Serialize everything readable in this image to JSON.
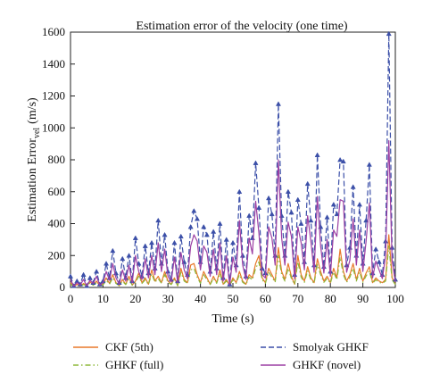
{
  "chart_data": {
    "type": "line",
    "title": "Estimation error of the velocity (one time)",
    "xlabel": "Time (s)",
    "ylabel": "Estimation Error",
    "ylabel_sub": "vel",
    "ylabel_unit": "(m/s)",
    "xlim": [
      0,
      100
    ],
    "ylim": [
      0,
      1600
    ],
    "xticks": [
      0,
      10,
      20,
      30,
      40,
      50,
      60,
      70,
      80,
      90,
      100
    ],
    "yticks": [
      0,
      200,
      400,
      600,
      800,
      1000,
      1200,
      1400,
      1600
    ],
    "grid": false,
    "legend_position": "bottom",
    "x": [
      0,
      1,
      2,
      3,
      4,
      5,
      6,
      7,
      8,
      9,
      10,
      11,
      12,
      13,
      14,
      15,
      16,
      17,
      18,
      19,
      20,
      21,
      22,
      23,
      24,
      25,
      26,
      27,
      28,
      29,
      30,
      31,
      32,
      33,
      34,
      35,
      36,
      37,
      38,
      39,
      40,
      41,
      42,
      43,
      44,
      45,
      46,
      47,
      48,
      49,
      50,
      51,
      52,
      53,
      54,
      55,
      56,
      57,
      58,
      59,
      60,
      61,
      62,
      63,
      64,
      65,
      66,
      67,
      68,
      69,
      70,
      71,
      72,
      73,
      74,
      75,
      76,
      77,
      78,
      79,
      80,
      81,
      82,
      83,
      84,
      85,
      86,
      87,
      88,
      89,
      90,
      91,
      92,
      93,
      94,
      95,
      96,
      97,
      98,
      99,
      100
    ],
    "series": [
      {
        "name": "CKF (5th)",
        "color": "#e8792a",
        "dash": "solid",
        "marker": "none",
        "values": [
          30,
          5,
          20,
          8,
          25,
          10,
          35,
          15,
          40,
          10,
          20,
          60,
          25,
          80,
          30,
          10,
          50,
          20,
          70,
          15,
          40,
          90,
          30,
          60,
          20,
          110,
          40,
          70,
          30,
          100,
          40,
          20,
          60,
          10,
          120,
          50,
          30,
          140,
          150,
          80,
          30,
          100,
          60,
          20,
          70,
          30,
          110,
          20,
          50,
          10,
          60,
          30,
          100,
          40,
          20,
          80,
          60,
          150,
          200,
          60,
          30,
          120,
          80,
          40,
          250,
          100,
          50,
          150,
          70,
          20,
          200,
          80,
          40,
          130,
          60,
          30,
          180,
          100,
          40,
          70,
          30,
          120,
          60,
          240,
          100,
          40,
          80,
          150,
          50,
          120,
          40,
          90,
          130,
          30,
          60,
          40,
          30,
          50,
          330,
          60,
          20
        ]
      },
      {
        "name": "GHKF (full)",
        "color": "#8db83a",
        "dash": "dashdot",
        "marker": "none",
        "values": [
          20,
          8,
          15,
          10,
          18,
          12,
          28,
          14,
          30,
          12,
          16,
          45,
          20,
          60,
          25,
          12,
          38,
          18,
          55,
          14,
          30,
          70,
          25,
          48,
          18,
          85,
          32,
          55,
          26,
          80,
          32,
          18,
          48,
          12,
          95,
          40,
          26,
          110,
          120,
          64,
          26,
          80,
          48,
          18,
          56,
          26,
          88,
          18,
          40,
          12,
          48,
          26,
          80,
          32,
          18,
          64,
          48,
          120,
          160,
          48,
          26,
          96,
          64,
          32,
          200,
          80,
          40,
          120,
          56,
          18,
          160,
          64,
          32,
          104,
          48,
          26,
          144,
          80,
          32,
          56,
          26,
          96,
          48,
          190,
          80,
          32,
          64,
          120,
          40,
          96,
          32,
          72,
          104,
          26,
          48,
          32,
          26,
          40,
          260,
          48,
          18
        ]
      },
      {
        "name": "Smolyak GHKF",
        "color": "#3b4fa8",
        "dash": "dashed",
        "marker": "triangle",
        "values": [
          70,
          10,
          40,
          20,
          80,
          10,
          60,
          30,
          100,
          20,
          40,
          150,
          60,
          230,
          90,
          30,
          180,
          60,
          200,
          40,
          310,
          150,
          70,
          260,
          90,
          280,
          120,
          420,
          150,
          330,
          100,
          50,
          280,
          40,
          320,
          160,
          80,
          380,
          480,
          430,
          160,
          380,
          330,
          100,
          350,
          120,
          400,
          60,
          300,
          20,
          280,
          140,
          600,
          200,
          70,
          450,
          310,
          780,
          500,
          120,
          90,
          560,
          460,
          200,
          1150,
          450,
          200,
          600,
          470,
          80,
          550,
          400,
          160,
          650,
          420,
          140,
          830,
          380,
          130,
          440,
          100,
          520,
          460,
          800,
          790,
          140,
          250,
          630,
          200,
          520,
          150,
          420,
          770,
          90,
          240,
          160,
          80,
          290,
          1590,
          250,
          50
        ]
      },
      {
        "name": "GHKF (novel)",
        "color": "#9c3fa3",
        "dash": "solid",
        "marker": "none",
        "values": [
          50,
          8,
          30,
          15,
          50,
          10,
          45,
          25,
          70,
          15,
          30,
          100,
          45,
          150,
          60,
          20,
          110,
          40,
          140,
          30,
          200,
          100,
          50,
          180,
          60,
          200,
          80,
          280,
          100,
          240,
          70,
          35,
          190,
          30,
          220,
          110,
          55,
          260,
          330,
          290,
          110,
          260,
          220,
          70,
          240,
          80,
          280,
          40,
          200,
          15,
          190,
          95,
          420,
          140,
          50,
          310,
          210,
          540,
          340,
          80,
          60,
          380,
          310,
          140,
          800,
          310,
          140,
          410,
          320,
          55,
          380,
          280,
          110,
          450,
          290,
          95,
          570,
          260,
          90,
          300,
          70,
          360,
          320,
          550,
          540,
          95,
          170,
          430,
          140,
          360,
          100,
          290,
          530,
          60,
          165,
          110,
          55,
          200,
          920,
          170,
          35
        ]
      }
    ]
  }
}
